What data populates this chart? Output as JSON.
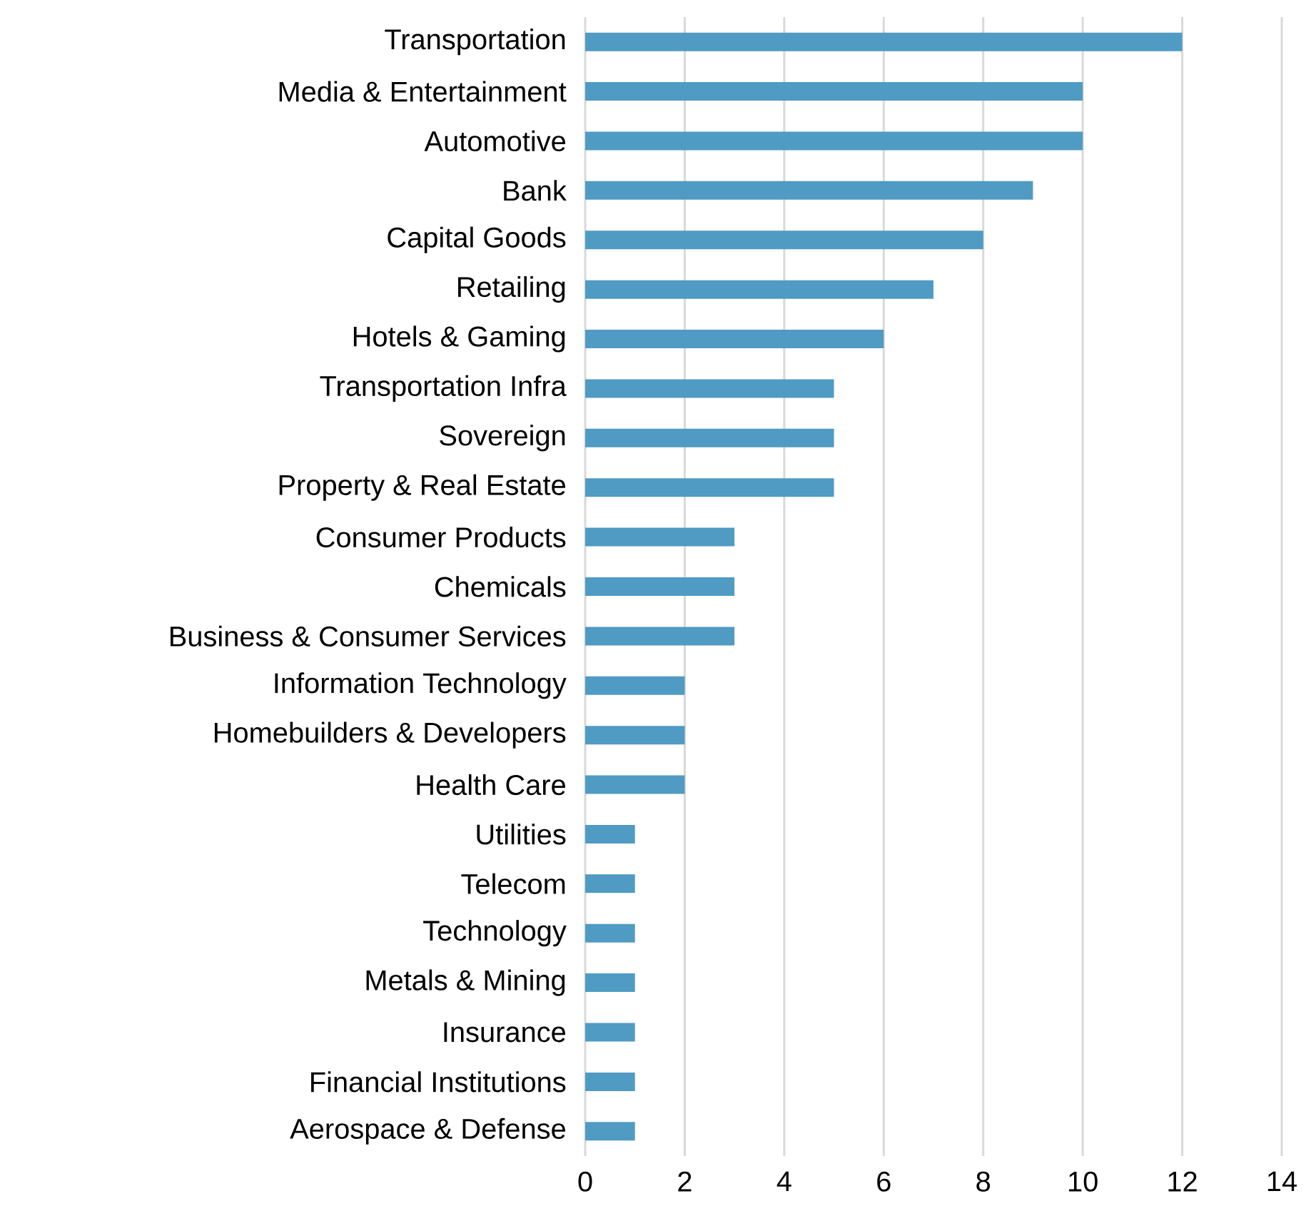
{
  "chart_data": {
    "type": "bar",
    "orientation": "horizontal",
    "categories": [
      "Transportation",
      "Media & Entertainment",
      "Automotive",
      "Bank",
      "Capital Goods",
      "Retailing",
      "Hotels & Gaming",
      "Transportation Infra",
      "Sovereign",
      "Property & Real Estate",
      "Consumer Products",
      "Chemicals",
      "Business & Consumer Services",
      "Information Technology",
      "Homebuilders & Developers",
      "Health Care",
      "Utilities",
      "Telecom",
      "Technology",
      "Metals & Mining",
      "Insurance",
      "Financial Institutions",
      "Aerospace & Defense"
    ],
    "values": [
      12,
      10,
      10,
      9,
      8,
      7,
      6,
      5,
      5,
      5,
      3,
      3,
      3,
      2,
      2,
      2,
      1,
      1,
      1,
      1,
      1,
      1,
      1
    ],
    "color": "#4f9bc4",
    "xlim": [
      0,
      14
    ],
    "xticks": [
      0,
      2,
      4,
      6,
      8,
      10,
      12,
      14
    ],
    "grid": "x"
  }
}
